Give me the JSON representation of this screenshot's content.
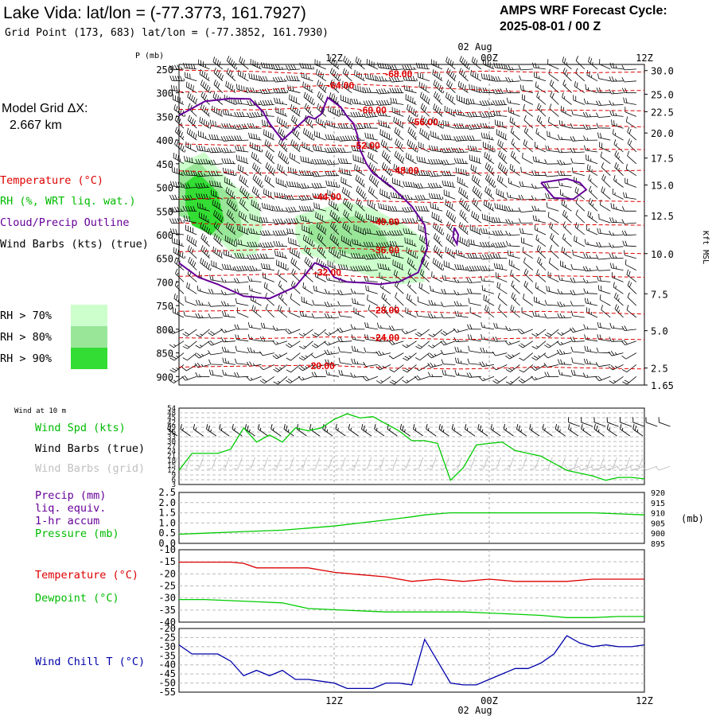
{
  "header": {
    "title": "Lake Vida:  lat/lon = (-77.3773, 161.7927)",
    "grid_point": "Grid Point (173, 683) lat/lon = (-77.3852, 161.7930)",
    "cycle_line1": "AMPS WRF Forecast Cycle:",
    "cycle_line2": "2025-08-01 / 00  Z"
  },
  "legend": {
    "model_grid_line1": "Model Grid ΔX:",
    "model_grid_line2": "2.667 km",
    "temperature": "Temperature (°C)",
    "rh": "RH (%, WRT liq. wat.)",
    "cloud": "Cloud/Precip Outline",
    "wind_barbs": "Wind Barbs (kts) (true)",
    "rh70": "RH > 70%",
    "rh80": "RH > 80%",
    "rh90": "RH > 90%",
    "rh_colors": [
      "#ccffcc",
      "#99e699",
      "#33dd33"
    ],
    "wind10m": "Wind at 10 m",
    "wind_spd": "Wind Spd (kts)",
    "barbs_true": "Wind Barbs (true)",
    "barbs_grid": "Wind Barbs (grid)",
    "precip1": "Precip (mm)",
    "precip2": "liq. equiv.",
    "precip3": "1-hr accum",
    "pressure": "Pressure (mb)",
    "temp2": "Temperature (°C)",
    "dewpoint": "Dewpoint (°C)",
    "windchill": "Wind Chill T (°C)"
  },
  "colors": {
    "temperature": "#dd0000",
    "cloud": "#660099",
    "green": "#00cc00",
    "windchill": "#0000aa",
    "grid_barbs": "#c0c0c0"
  },
  "time_axis": {
    "top_labels": [
      "12Z",
      "00Z",
      "12Z"
    ],
    "bottom_labels": [
      "12Z",
      "00Z",
      "12Z"
    ],
    "date_label": "02 Aug",
    "hours_range": [
      0,
      36
    ]
  },
  "chart_data": [
    {
      "type": "contour",
      "panel": "upper-air cross-section",
      "ylabel_left": "P (mb)",
      "ylabel_right": "Kft MSL",
      "pressure_ticks": [
        "250",
        "300",
        "350",
        "400",
        "450",
        "500",
        "550",
        "600",
        "650",
        "700",
        "750",
        "800",
        "850",
        "900"
      ],
      "height_ticks": [
        {
          "label": "30.0",
          "p": 253
        },
        {
          "label": "25.0",
          "p": 303
        },
        {
          "label": "22.5",
          "p": 340
        },
        {
          "label": "20.0",
          "p": 385
        },
        {
          "label": "17.5",
          "p": 438
        },
        {
          "label": "15.0",
          "p": 495
        },
        {
          "label": "12.5",
          "p": 560
        },
        {
          "label": "10.0",
          "p": 640
        },
        {
          "label": "7.5",
          "p": 725
        },
        {
          "label": "5.0",
          "p": 803
        },
        {
          "label": "2.5",
          "p": 882
        },
        {
          "label": "1.65",
          "p": 918
        }
      ],
      "pressure_range": [
        240,
        918
      ],
      "temperature_labels": [
        {
          "text": "-68.00",
          "t": 17,
          "p": 260
        },
        {
          "text": "-64.00",
          "t": 12.5,
          "p": 285
        },
        {
          "text": "-60.00",
          "t": 15,
          "p": 337
        },
        {
          "text": "-56.00",
          "t": 19,
          "p": 362
        },
        {
          "text": "-52.00",
          "t": 14.5,
          "p": 412
        },
        {
          "text": "-48.00",
          "t": 17.5,
          "p": 465
        },
        {
          "text": "-44.00",
          "t": 11.5,
          "p": 520
        },
        {
          "text": "-40.00",
          "t": 16,
          "p": 573
        },
        {
          "text": "-36.00",
          "t": 16,
          "p": 633
        },
        {
          "text": "-32.00",
          "t": 11.5,
          "p": 680
        },
        {
          "text": "-28.00",
          "t": 16,
          "p": 760
        },
        {
          "text": "-24.00",
          "t": 16,
          "p": 818
        },
        {
          "text": "-20.00",
          "t": 11,
          "p": 878
        }
      ],
      "temperature_contours": [
        {
          "t": [
            0,
            6,
            12,
            18,
            24,
            30,
            36
          ],
          "p": [
            252,
            255,
            262,
            258,
            254,
            258,
            256
          ]
        },
        {
          "t": [
            0,
            6,
            10,
            14,
            20,
            26,
            36
          ],
          "p": [
            298,
            296,
            286,
            282,
            290,
            297,
            295
          ]
        },
        {
          "t": [
            0,
            6,
            12,
            16,
            22,
            28,
            36
          ],
          "p": [
            335,
            336,
            330,
            340,
            342,
            336,
            338
          ]
        },
        {
          "t": [
            0,
            6,
            12,
            18,
            24,
            30,
            36
          ],
          "p": [
            368,
            372,
            366,
            364,
            372,
            368,
            372
          ]
        },
        {
          "t": [
            0,
            6,
            11,
            15,
            20,
            26,
            36
          ],
          "p": [
            408,
            412,
            410,
            414,
            420,
            418,
            420
          ]
        },
        {
          "t": [
            0,
            6,
            12,
            17,
            22,
            28,
            36
          ],
          "p": [
            465,
            470,
            466,
            462,
            470,
            468,
            464
          ]
        },
        {
          "t": [
            0,
            5,
            10,
            14,
            20,
            26,
            36
          ],
          "p": [
            525,
            522,
            518,
            528,
            532,
            526,
            530
          ]
        },
        {
          "t": [
            0,
            6,
            12,
            16,
            22,
            28,
            36
          ],
          "p": [
            575,
            580,
            574,
            572,
            582,
            578,
            580
          ]
        },
        {
          "t": [
            0,
            6,
            12,
            16,
            22,
            28,
            36
          ],
          "p": [
            636,
            632,
            628,
            632,
            640,
            636,
            640
          ]
        },
        {
          "t": [
            0,
            5,
            10,
            15,
            21,
            27,
            36
          ],
          "p": [
            688,
            685,
            682,
            690,
            692,
            686,
            690
          ]
        },
        {
          "t": [
            0,
            6,
            12,
            16,
            22,
            28,
            36
          ],
          "p": [
            762,
            760,
            764,
            760,
            766,
            762,
            768
          ]
        },
        {
          "t": [
            0,
            6,
            12,
            16,
            22,
            28,
            36
          ],
          "p": [
            818,
            820,
            816,
            818,
            822,
            818,
            822
          ]
        },
        {
          "t": [
            0,
            5,
            11,
            16,
            22,
            28,
            36
          ],
          "p": [
            880,
            878,
            876,
            882,
            884,
            880,
            884
          ]
        }
      ],
      "cloud_outlines": [
        {
          "t": [
            0,
            2,
            4,
            5.5,
            6.5,
            7,
            8,
            9,
            10,
            10.5,
            11,
            11.5,
            12.5,
            13,
            13.5,
            13.8,
            14,
            14.5,
            15,
            16.5,
            18,
            19,
            19.2,
            18.5,
            17,
            15.5,
            14.5,
            13,
            12,
            11.5,
            10.5,
            9,
            7,
            5,
            3,
            1.5,
            0
          ],
          "p": [
            348,
            318,
            312,
            313,
            340,
            365,
            400,
            375,
            350,
            355,
            345,
            310,
            330,
            350,
            365,
            390,
            420,
            450,
            470,
            500,
            540,
            580,
            630,
            680,
            700,
            705,
            702,
            700,
            690,
            670,
            660,
            710,
            735,
            730,
            705,
            690,
            660
          ]
        },
        {
          "t": [
            28,
            30,
            31,
            31.5,
            30.5,
            29,
            28
          ],
          "p": [
            490,
            482,
            490,
            505,
            525,
            522,
            490
          ]
        },
        {
          "t": [
            21.3,
            21.6,
            21.5,
            21.2,
            21.3
          ],
          "p": [
            585,
            600,
            620,
            605,
            585
          ]
        }
      ],
      "rh_regions": [
        {
          "level": 70,
          "t": [
            0,
            2,
            3,
            4.5,
            6,
            6.5,
            6,
            4.5,
            3,
            1,
            0
          ],
          "p": [
            450,
            425,
            460,
            500,
            520,
            580,
            640,
            650,
            610,
            560,
            540
          ]
        },
        {
          "level": 70,
          "t": [
            9,
            11,
            13,
            15,
            17.5,
            19,
            19,
            17,
            15,
            13,
            11,
            9.5,
            9
          ],
          "p": [
            560,
            545,
            530,
            545,
            580,
            610,
            700,
            705,
            690,
            670,
            650,
            640,
            600
          ]
        },
        {
          "level": 80,
          "t": [
            0,
            1.5,
            3,
            4.5,
            5,
            4,
            2.5,
            1,
            0
          ],
          "p": [
            470,
            445,
            490,
            530,
            600,
            620,
            600,
            570,
            560
          ]
        },
        {
          "level": 80,
          "t": [
            10,
            12,
            14,
            15.5,
            16.5,
            15,
            13,
            11,
            10
          ],
          "p": [
            580,
            565,
            560,
            585,
            630,
            650,
            640,
            625,
            605
          ]
        },
        {
          "level": 90,
          "t": [
            0.5,
            1.5,
            3,
            3.5,
            2.5,
            1,
            0.5
          ],
          "p": [
            490,
            470,
            510,
            570,
            600,
            580,
            540
          ]
        }
      ],
      "wind_barb_grid": {
        "times_step": 1,
        "levels_step_mb": 25
      }
    },
    {
      "type": "line",
      "panel": "wind at 10 m",
      "y_ticks": [
        "54",
        "48",
        "45",
        "42",
        "39",
        "36",
        "33",
        "30",
        "27",
        "24",
        "21",
        "18",
        "15",
        "12",
        "9",
        "6",
        "3"
      ],
      "ylim": [
        0,
        54
      ],
      "series": [
        {
          "name": "Wind Spd (kts)",
          "x": [
            0,
            1,
            2,
            3,
            4,
            5,
            6,
            7,
            8,
            9,
            10,
            11,
            12,
            13,
            14,
            15,
            16,
            17,
            18,
            19,
            20,
            21,
            22,
            23,
            24,
            25,
            26,
            27,
            28,
            29,
            30,
            31,
            32,
            33,
            34,
            35,
            36
          ],
          "y": [
            10,
            22,
            22,
            22,
            25,
            40,
            30,
            35,
            30,
            40,
            38,
            40,
            46,
            50,
            47,
            48,
            43,
            38,
            31,
            31,
            29,
            3,
            12,
            28,
            29,
            30,
            24,
            22,
            20,
            15,
            10,
            8,
            6,
            3,
            5,
            5,
            4
          ]
        }
      ]
    },
    {
      "type": "line",
      "panel": "precipitation and pressure",
      "y_ticks": [
        "2.5",
        "2.0",
        "1.5",
        "1.0",
        "0.5",
        "0.0"
      ],
      "y2_ticks": [
        "920",
        "915",
        "910",
        "905",
        "900",
        "895"
      ],
      "y2label": "(mb)",
      "ylim": [
        0,
        2.5
      ],
      "y2lim": [
        895,
        920
      ],
      "series": [
        {
          "name": "Pressure (mb)",
          "x": [
            0,
            2,
            4,
            6,
            8,
            10,
            12,
            14,
            16,
            18,
            19,
            20,
            21,
            22,
            24,
            26,
            28,
            30,
            32,
            34,
            36
          ],
          "y": [
            899.5,
            900,
            900.5,
            901,
            901.5,
            902.5,
            903.5,
            905,
            906.5,
            908,
            909,
            909.5,
            910,
            910,
            910,
            910,
            910,
            910,
            910,
            909.5,
            909
          ]
        }
      ]
    },
    {
      "type": "line",
      "panel": "temperature and dewpoint",
      "y_ticks": [
        "-10",
        "-15",
        "-20",
        "-25",
        "-30",
        "-35",
        "-40"
      ],
      "ylim": [
        -40,
        -8
      ],
      "series": [
        {
          "name": "Temperature (°C)",
          "x": [
            0,
            2,
            4,
            5,
            6,
            8,
            10,
            12,
            14,
            16,
            18,
            20,
            22,
            24,
            26,
            28,
            30,
            32,
            34,
            36
          ],
          "y": [
            -13.5,
            -13.5,
            -13.5,
            -14,
            -16,
            -16,
            -16,
            -18,
            -19,
            -20,
            -22,
            -21,
            -22,
            -21,
            -22,
            -22,
            -22,
            -21,
            -21,
            -21
          ]
        },
        {
          "name": "Dewpoint (°C)",
          "x": [
            0,
            2,
            4,
            6,
            8,
            10,
            12,
            14,
            16,
            18,
            20,
            22,
            24,
            26,
            28,
            30,
            32,
            34,
            36
          ],
          "y": [
            -30,
            -30,
            -30.5,
            -31,
            -31.5,
            -34,
            -34.5,
            -35,
            -35.5,
            -35.5,
            -35.5,
            -35.5,
            -36,
            -36.5,
            -37,
            -38,
            -38,
            -37.5,
            -37.5
          ]
        }
      ]
    },
    {
      "type": "line",
      "panel": "wind chill",
      "y_ticks": [
        "-20",
        "-25",
        "-30",
        "-35",
        "-40",
        "-45",
        "-50",
        "-55"
      ],
      "ylim": [
        -55,
        -20
      ],
      "series": [
        {
          "name": "Wind Chill T (°C)",
          "x": [
            0,
            1,
            2,
            3,
            4,
            5,
            6,
            7,
            8,
            9,
            10,
            11,
            12,
            13,
            14,
            15,
            16,
            17,
            18,
            19,
            20,
            21,
            22,
            23,
            24,
            25,
            26,
            27,
            28,
            29,
            30,
            31,
            32,
            33,
            34,
            35,
            36
          ],
          "y": [
            -29,
            -34,
            -34,
            -34,
            -38,
            -46,
            -43,
            -46,
            -43,
            -48,
            -48,
            -49,
            -50,
            -53,
            -53,
            -53,
            -50,
            -50,
            -51,
            -26,
            -38,
            -50,
            -51,
            -51,
            -48,
            -45,
            -42,
            -42,
            -39,
            -34,
            -24,
            -28,
            -30,
            -29,
            -30,
            -30,
            -29
          ]
        }
      ]
    }
  ]
}
